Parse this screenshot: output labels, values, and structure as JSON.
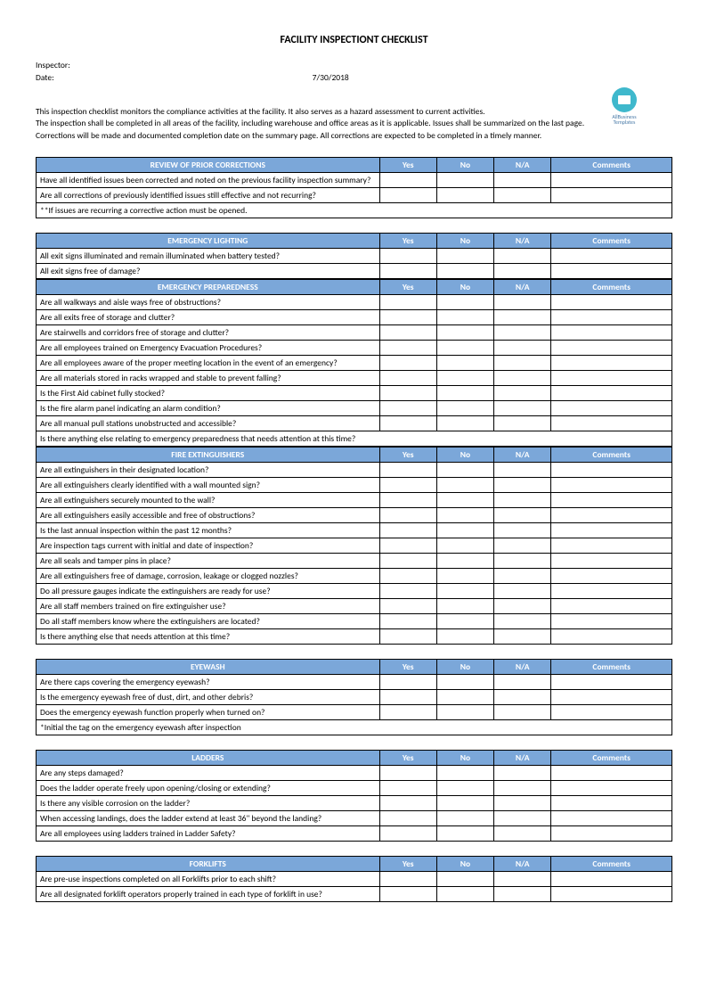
{
  "title": "FACILITY INSPECTIONT CHECKLIST",
  "inspector_label": "Inspector:",
  "date_label": "Date:",
  "date_value": "7/30/2018",
  "logo_text1": "AllBusiness",
  "logo_text2": "Templates",
  "intro": [
    "This inspection checklist monitors the compliance activities at the facility.  It also serves as a hazard assessment to current activities.",
    " The inspection shall be completed in all areas of the facility, including warehouse and office areas as it is applicable.  Issues shall be summarized on the last page.",
    "Corrections will be made and documented completion date on the summary page.  All corrections are expected to be completed in a timely manner."
  ],
  "col_yes": "Yes",
  "col_no": "No",
  "col_na": "N/A",
  "col_comments": "Comments",
  "sections": [
    {
      "title": "REVIEW OF PRIOR CORRECTIONS",
      "rows": [
        {
          "q": "Have all identified issues been corrected and noted on the previous facility inspection summary?",
          "full": false,
          "tall": true
        },
        {
          "q": "Are all corrections of previously identified issues still effective and not recurring?",
          "full": false
        },
        {
          "q": "**If issues are recurring a corrective action must be opened.",
          "full": true
        }
      ]
    },
    {
      "title": "EMERGENCY LIGHTING",
      "rows": [
        {
          "q": "All exit signs illuminated and remain illuminated when battery tested?",
          "full": false
        },
        {
          "q": "All exit signs free of damage?",
          "full": false,
          "tall": true
        }
      ]
    },
    {
      "title": "EMERGENCY PREPAREDNESS",
      "nogap": true,
      "rows": [
        {
          "q": "Are all walkways and aisle ways free of obstructions?",
          "full": false
        },
        {
          "q": "Are all exits free of storage and clutter?",
          "full": false
        },
        {
          "q": "Are stairwells and corridors free of storage and clutter?",
          "full": false
        },
        {
          "q": "Are all employees trained on Emergency Evacuation Procedures?",
          "full": false
        },
        {
          "q": "Are all employees aware of the proper meeting location in the event of an emergency?",
          "full": false
        },
        {
          "q": "Are all materials stored in racks wrapped and stable to prevent falling?",
          "full": false
        },
        {
          "q": "Is the First Aid cabinet fully stocked?",
          "full": false
        },
        {
          "q": "Is the fire alarm panel indicating an alarm condition?",
          "full": false
        },
        {
          "q": "Are all manual pull stations unobstructed and accessible?",
          "full": false
        },
        {
          "q": "Is there anything else relating to emergency preparedness that needs attention at this time?",
          "full": true,
          "tall": true
        }
      ]
    },
    {
      "title": "FIRE EXTINGUISHERS",
      "nogap": true,
      "rows": [
        {
          "q": "Are all extinguishers in their designated location?",
          "full": false
        },
        {
          "q": "Are all extinguishers clearly identified with a wall mounted sign?",
          "full": false
        },
        {
          "q": "Are all extinguishers securely mounted to the wall?",
          "full": false
        },
        {
          "q": "Are all extinguishers easily accessible and free of obstructions?",
          "full": false
        },
        {
          "q": "Is the last annual inspection within the past 12 months?",
          "full": false
        },
        {
          "q": "Are inspection tags current with initial and date of inspection?",
          "full": false
        },
        {
          "q": "Are all seals and tamper pins in place?",
          "full": false,
          "tall": true
        },
        {
          "q": "Are all extinguishers free of damage, corrosion, leakage or clogged nozzles?",
          "full": false
        },
        {
          "q": "Do all pressure gauges indicate the extinguishers are ready for use?",
          "full": false
        },
        {
          "q": "Are all staff members trained on fire extinguisher use?",
          "full": false
        },
        {
          "q": "Do all staff members know where the extinguishers are located?",
          "full": false
        },
        {
          "q": "Is there anything else that needs attention at this time?",
          "full": false
        }
      ]
    },
    {
      "title": "EYEWASH",
      "rows": [
        {
          "q": "Are there caps covering the emergency eyewash?",
          "full": false
        },
        {
          "q": "Is the emergency eyewash free of dust, dirt, and other debris?",
          "full": false
        },
        {
          "q": "Does the emergency eyewash function properly when turned on?",
          "full": false
        },
        {
          "q": "*Initial the tag on the emergency eyewash after inspection",
          "full": true
        }
      ]
    },
    {
      "title": "LADDERS",
      "rows": [
        {
          "q": "Are any steps damaged?",
          "full": false,
          "tall": true
        },
        {
          "q": "Does the ladder operate freely upon opening/closing or extending?",
          "full": false
        },
        {
          "q": "Is there any visible corrosion on the ladder?",
          "full": false
        },
        {
          "q": "When accessing landings, does the ladder extend at least 36\" beyond the landing?",
          "full": false
        },
        {
          "q": "Are all employees using ladders trained in Ladder Safety?",
          "full": false
        }
      ]
    },
    {
      "title": "FORKLIFTS",
      "rows": [
        {
          "q": "Are pre-use inspections completed on all Forklifts prior to each shift?",
          "full": false
        },
        {
          "q": "Are all designated forklift operators properly trained in each type of forklift in use?",
          "full": false
        }
      ]
    }
  ]
}
